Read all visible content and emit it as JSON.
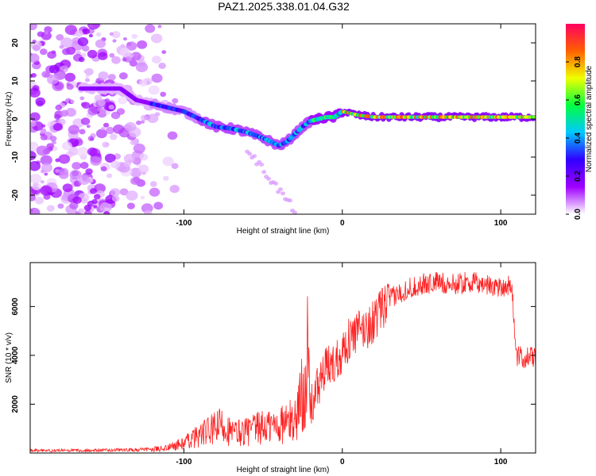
{
  "title": "PAZ1.2025.338.01.04.G32",
  "chart_data": [
    {
      "type": "heatmap",
      "name": "spectrogram",
      "xlabel": "Height of straight line (km)",
      "ylabel": "Frequency (Hz)",
      "xlim": [
        -197,
        122
      ],
      "ylim": [
        -25,
        25
      ],
      "xticks": [
        -100,
        0,
        100
      ],
      "xtick_labels": [
        "-100",
        "0",
        "100"
      ],
      "yticks": [
        -20,
        -10,
        0,
        10,
        20
      ],
      "ytick_labels": [
        "-20",
        "-10",
        "0",
        "10",
        "20"
      ],
      "ridge": {
        "x": [
          -160,
          -150,
          -140,
          -130,
          -120,
          -110,
          -100,
          -90,
          -80,
          -70,
          -60,
          -50,
          -45,
          -40,
          -35,
          -30,
          -25,
          -20,
          -15,
          -10,
          -5,
          0,
          10,
          20,
          40,
          60,
          80,
          100,
          120
        ],
        "y": [
          8,
          8,
          8,
          5,
          4,
          3,
          2,
          0,
          -2,
          -2.5,
          -3.5,
          -5,
          -6,
          -7,
          -6,
          -4,
          -2,
          -0.5,
          0,
          0.5,
          0.5,
          2,
          1,
          0.5,
          0.5,
          0.5,
          0.5,
          0.5,
          0.5
        ]
      },
      "colorbar": {
        "label": "Normalized spectral amplitude",
        "range": [
          0,
          1
        ],
        "ticks": [
          0.0,
          0.2,
          0.4,
          0.6,
          0.8
        ],
        "tick_labels": [
          "0.0",
          "0.2",
          "0.4",
          "0.6",
          "0.8"
        ],
        "colors": [
          "#ffffff",
          "#a000ff",
          "#3000ff",
          "#00c8ff",
          "#00ff40",
          "#f0ff00",
          "#ff6000",
          "#ff0060"
        ]
      }
    },
    {
      "type": "line",
      "name": "snr",
      "xlabel": "Height of straight line (km)",
      "ylabel": "SNR (10 * v/v)",
      "xlim": [
        -197,
        122
      ],
      "ylim": [
        0,
        7800
      ],
      "xticks": [
        -100,
        0,
        100
      ],
      "xtick_labels": [
        "-100",
        "0",
        "100"
      ],
      "yticks": [
        2000,
        4000,
        6000
      ],
      "ytick_labels": [
        "2000",
        "4000",
        "6000"
      ],
      "color": "#ff2020",
      "series": [
        {
          "name": "SNR",
          "x": [
            -197,
            -180,
            -160,
            -140,
            -120,
            -110,
            -100,
            -90,
            -80,
            -75,
            -70,
            -60,
            -50,
            -40,
            -35,
            -30,
            -25,
            -22,
            -20,
            -15,
            -10,
            -5,
            0,
            5,
            10,
            15,
            20,
            25,
            30,
            40,
            50,
            60,
            70,
            80,
            90,
            100,
            105,
            107,
            110,
            115,
            122
          ],
          "y": [
            100,
            100,
            110,
            120,
            140,
            220,
            400,
            750,
            1000,
            1200,
            800,
            900,
            1050,
            1150,
            1250,
            1350,
            2500,
            3800,
            1800,
            2800,
            3500,
            3700,
            4200,
            4700,
            5000,
            5100,
            5400,
            5900,
            6300,
            6700,
            6900,
            7000,
            6900,
            7000,
            6900,
            6800,
            6900,
            6700,
            3950,
            3900,
            3950
          ]
        }
      ]
    }
  ]
}
